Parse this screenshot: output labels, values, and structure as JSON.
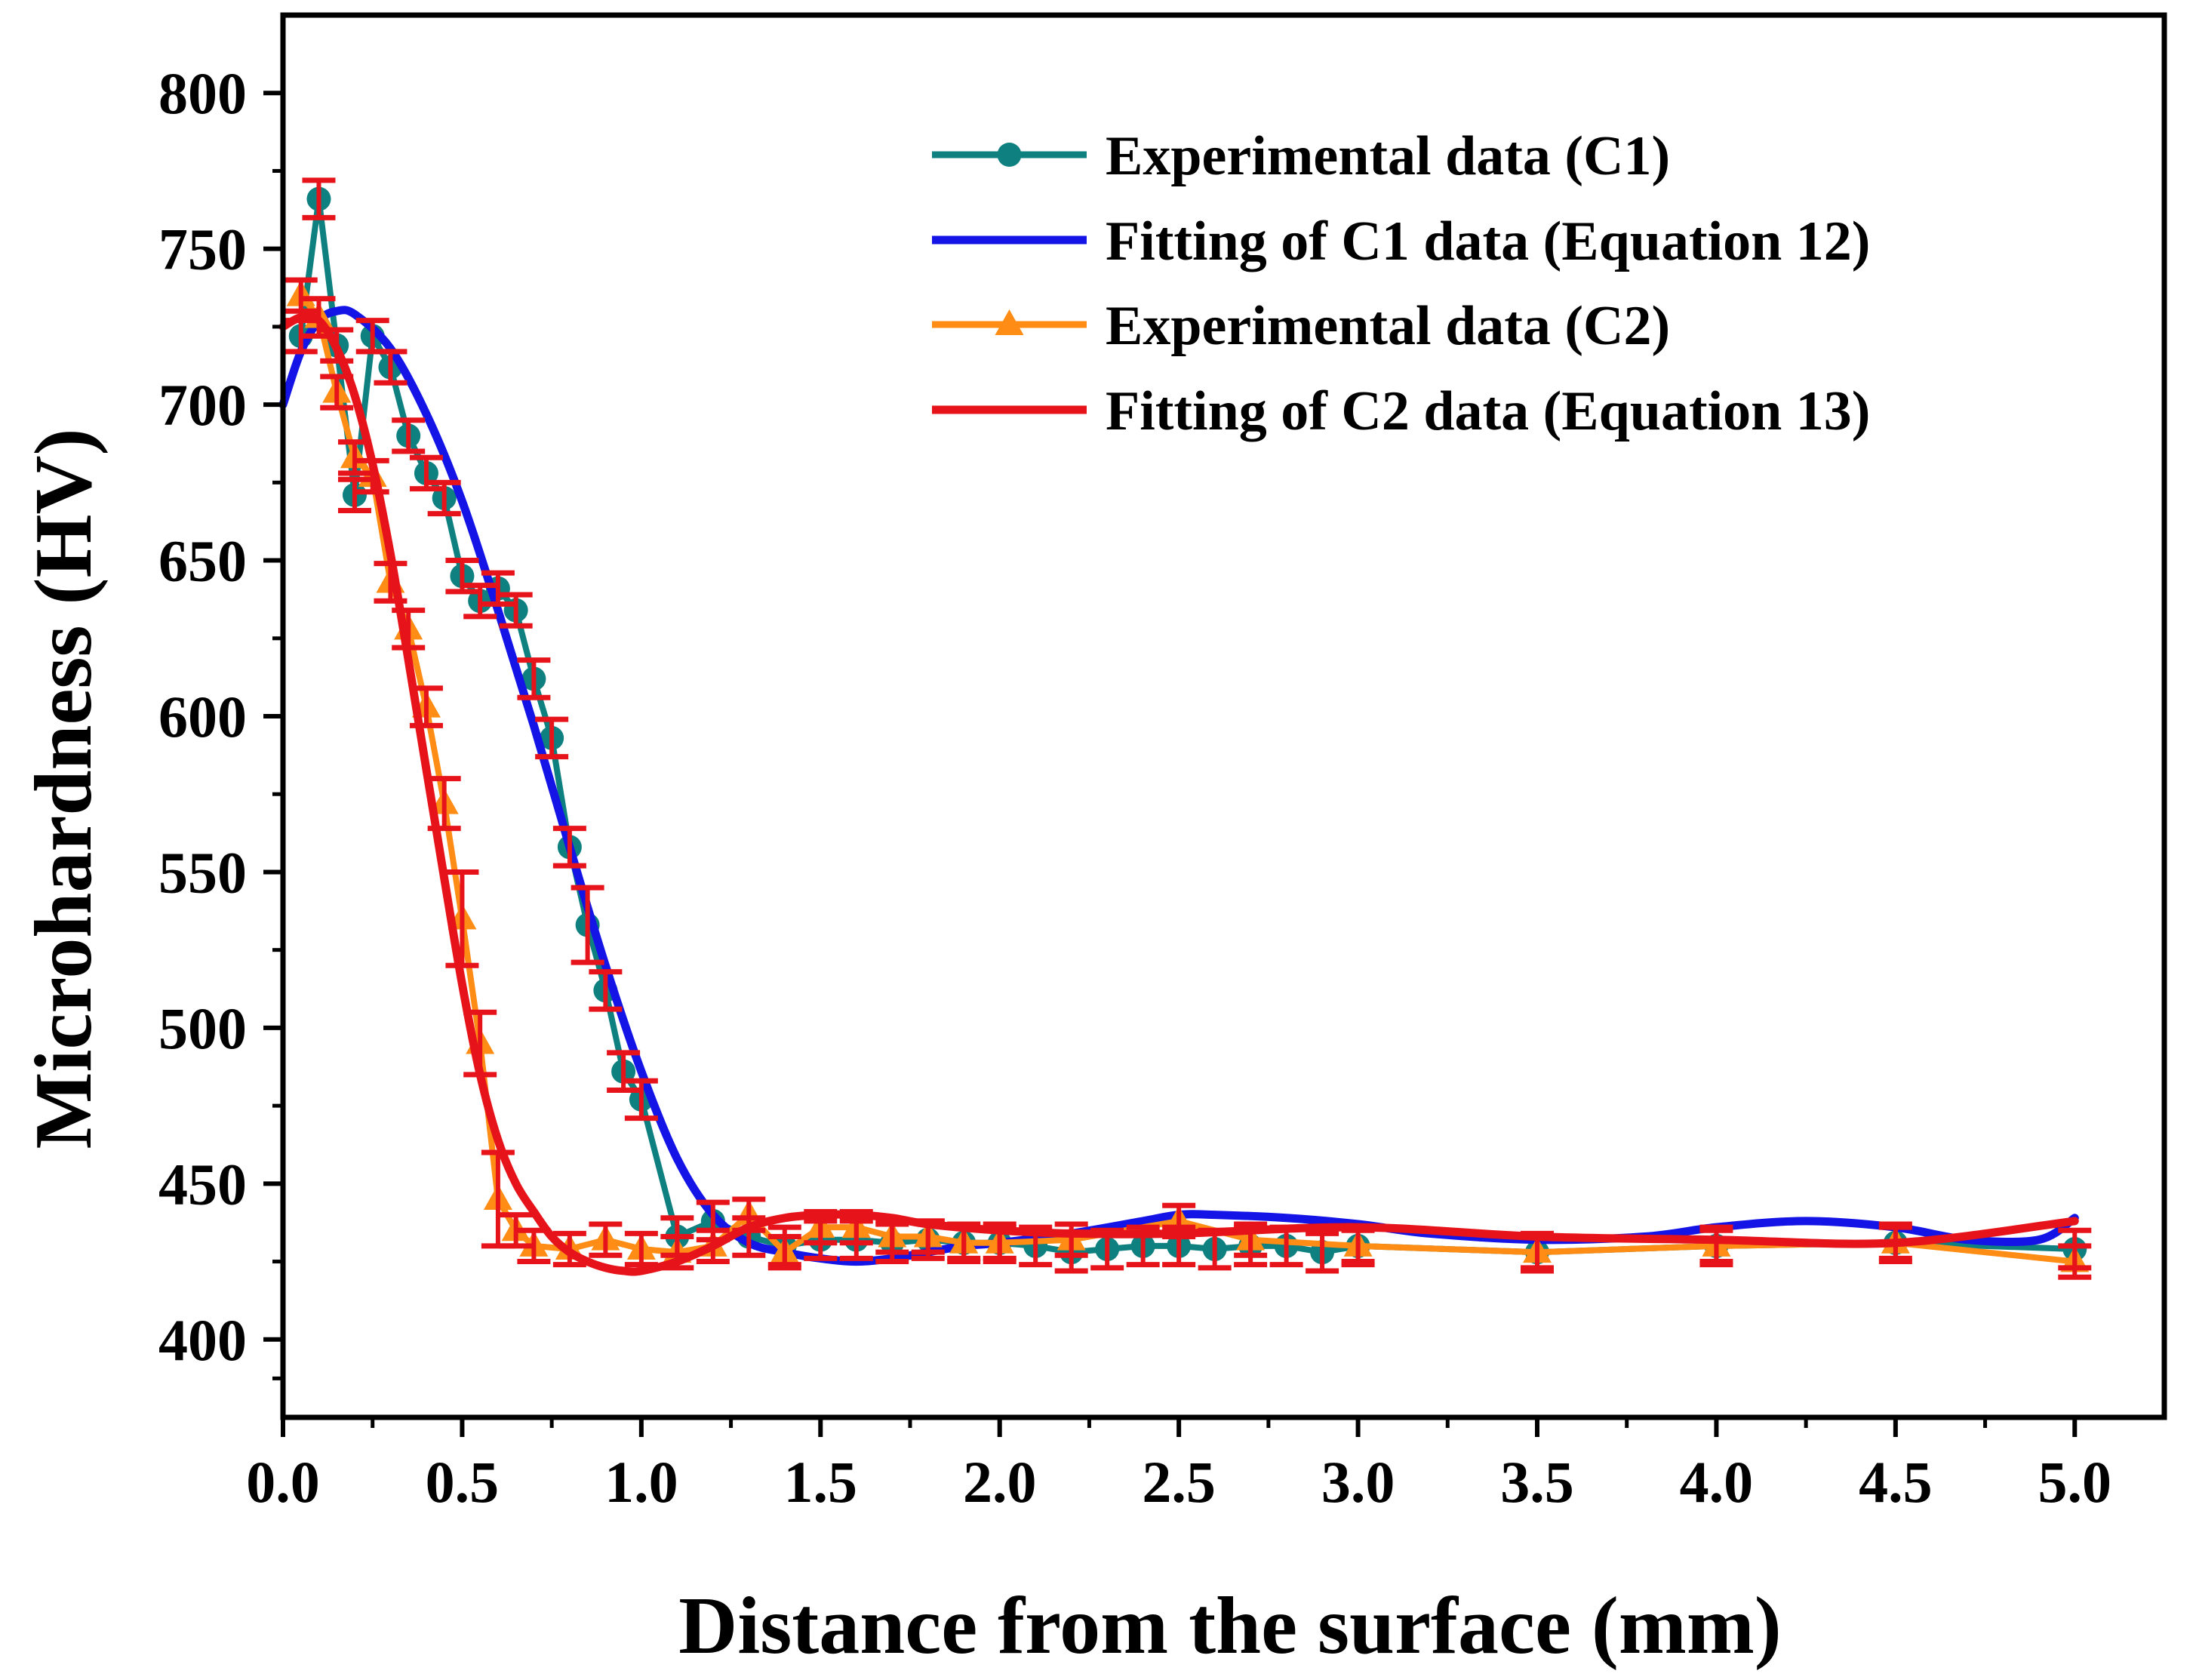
{
  "colors": {
    "c1_exp": "#0f8080",
    "c1_fit": "#1414e6",
    "c2_exp": "#ff8c14",
    "c2_fit": "#e6141a",
    "error_bars": "#e6141a",
    "axis": "#000000",
    "background": "#ffffff"
  },
  "chart_data": {
    "type": "line",
    "title": "",
    "xlabel": "Distance from the surface (mm)",
    "ylabel": "Microhardness (HV)",
    "xlim": [
      0.0,
      5.25
    ],
    "ylim": [
      375,
      825
    ],
    "x_ticks": [
      0.0,
      0.5,
      1.0,
      1.5,
      2.0,
      2.5,
      3.0,
      3.5,
      4.0,
      4.5,
      5.0
    ],
    "x_tick_labels": [
      "0.0",
      "0.5",
      "1.0",
      "1.5",
      "2.0",
      "2.5",
      "3.0",
      "3.5",
      "4.0",
      "4.5",
      "5.0"
    ],
    "y_ticks": [
      400,
      450,
      500,
      550,
      600,
      650,
      700,
      750,
      800
    ],
    "y_tick_labels": [
      "400",
      "450",
      "500",
      "550",
      "600",
      "650",
      "700",
      "750",
      "800"
    ],
    "grid": false,
    "legend_position": "top-right",
    "series": [
      {
        "name": "Experimental data (C1)",
        "kind": "experimental",
        "marker": "circle",
        "x": [
          0.05,
          0.1,
          0.15,
          0.2,
          0.25,
          0.3,
          0.35,
          0.4,
          0.45,
          0.5,
          0.55,
          0.6,
          0.65,
          0.7,
          0.75,
          0.8,
          0.85,
          0.9,
          0.95,
          1.0,
          1.1,
          1.2,
          1.3,
          1.4,
          1.5,
          1.6,
          1.7,
          1.8,
          1.9,
          2.0,
          2.1,
          2.2,
          2.3,
          2.4,
          2.5,
          2.6,
          2.7,
          2.8,
          2.9,
          3.0,
          3.5,
          4.0,
          4.5,
          5.0
        ],
        "values": [
          722,
          766,
          719,
          671,
          722,
          712,
          690,
          678,
          670,
          645,
          637,
          641,
          634,
          612,
          593,
          558,
          533,
          512,
          486,
          477,
          433,
          438,
          433,
          430,
          432,
          432,
          431,
          432,
          431,
          431,
          430,
          428,
          429,
          430,
          430,
          429,
          430,
          430,
          428,
          430,
          428,
          430,
          431,
          429
        ],
        "errors": [
          5,
          6,
          5,
          5,
          5,
          5,
          5,
          5,
          5,
          5,
          5,
          5,
          5,
          6,
          6,
          6,
          12,
          6,
          6,
          6,
          6,
          6,
          6,
          6,
          6,
          6,
          6,
          6,
          6,
          6,
          6,
          6,
          6,
          6,
          6,
          6,
          6,
          6,
          6,
          6,
          6,
          6,
          6,
          6
        ]
      },
      {
        "name": "Fitting of C1 data (Equation 12)",
        "kind": "fit",
        "x": [
          0.0,
          0.05,
          0.1,
          0.15,
          0.2,
          0.3,
          0.4,
          0.5,
          0.6,
          0.7,
          0.8,
          0.9,
          1.0,
          1.1,
          1.2,
          1.3,
          1.4,
          1.5,
          1.6,
          1.7,
          1.8,
          1.9,
          2.0,
          2.2,
          2.4,
          2.5,
          2.6,
          2.8,
          3.0,
          3.2,
          3.5,
          3.8,
          4.0,
          4.25,
          4.5,
          4.7,
          4.9,
          5.0
        ],
        "values": [
          700,
          717,
          727,
          730,
          729,
          718,
          697,
          669,
          634,
          597,
          558,
          520,
          486,
          458,
          440,
          431,
          428,
          426,
          425,
          426,
          428,
          430,
          431,
          434,
          438,
          440,
          440,
          439,
          437,
          434,
          432,
          433,
          436,
          438,
          436,
          432,
          432,
          439
        ]
      },
      {
        "name": "Experimental data (C2)",
        "kind": "experimental",
        "marker": "triangle",
        "x": [
          0.05,
          0.1,
          0.15,
          0.2,
          0.25,
          0.3,
          0.35,
          0.4,
          0.45,
          0.5,
          0.55,
          0.6,
          0.65,
          0.7,
          0.8,
          0.9,
          1.0,
          1.1,
          1.2,
          1.3,
          1.4,
          1.5,
          1.6,
          1.7,
          1.8,
          1.9,
          2.0,
          2.2,
          2.5,
          2.7,
          3.0,
          3.5,
          4.0,
          4.5,
          5.0
        ],
        "values": [
          735,
          728,
          704,
          683,
          677,
          643,
          628,
          603,
          572,
          535,
          495,
          445,
          435,
          430,
          429,
          432,
          429,
          428,
          430,
          440,
          428,
          436,
          436,
          433,
          433,
          431,
          431,
          432,
          438,
          432,
          430,
          428,
          430,
          431,
          425
        ],
        "errors": [
          5,
          6,
          5,
          5,
          5,
          6,
          6,
          6,
          8,
          15,
          10,
          15,
          5,
          5,
          5,
          5,
          5,
          5,
          5,
          5,
          5,
          5,
          5,
          5,
          5,
          5,
          5,
          5,
          5,
          5,
          5,
          5,
          5,
          5,
          5
        ]
      },
      {
        "name": "Fitting of C2 data (Equation 13)",
        "kind": "fit",
        "x": [
          0.0,
          0.05,
          0.1,
          0.15,
          0.2,
          0.25,
          0.3,
          0.35,
          0.4,
          0.45,
          0.5,
          0.55,
          0.6,
          0.65,
          0.7,
          0.75,
          0.8,
          0.85,
          0.9,
          0.95,
          1.0,
          1.1,
          1.2,
          1.3,
          1.4,
          1.5,
          1.6,
          1.7,
          1.8,
          2.0,
          2.2,
          2.5,
          3.0,
          3.5,
          4.0,
          4.5,
          5.0
        ],
        "values": [
          725,
          728,
          727,
          718,
          703,
          681,
          652,
          618,
          583,
          548,
          514,
          485,
          464,
          450,
          441,
          433,
          428,
          425,
          423,
          422,
          422,
          425,
          430,
          436,
          439,
          440,
          440,
          439,
          437,
          435,
          434,
          434,
          436,
          433,
          432,
          431,
          438
        ]
      }
    ]
  }
}
